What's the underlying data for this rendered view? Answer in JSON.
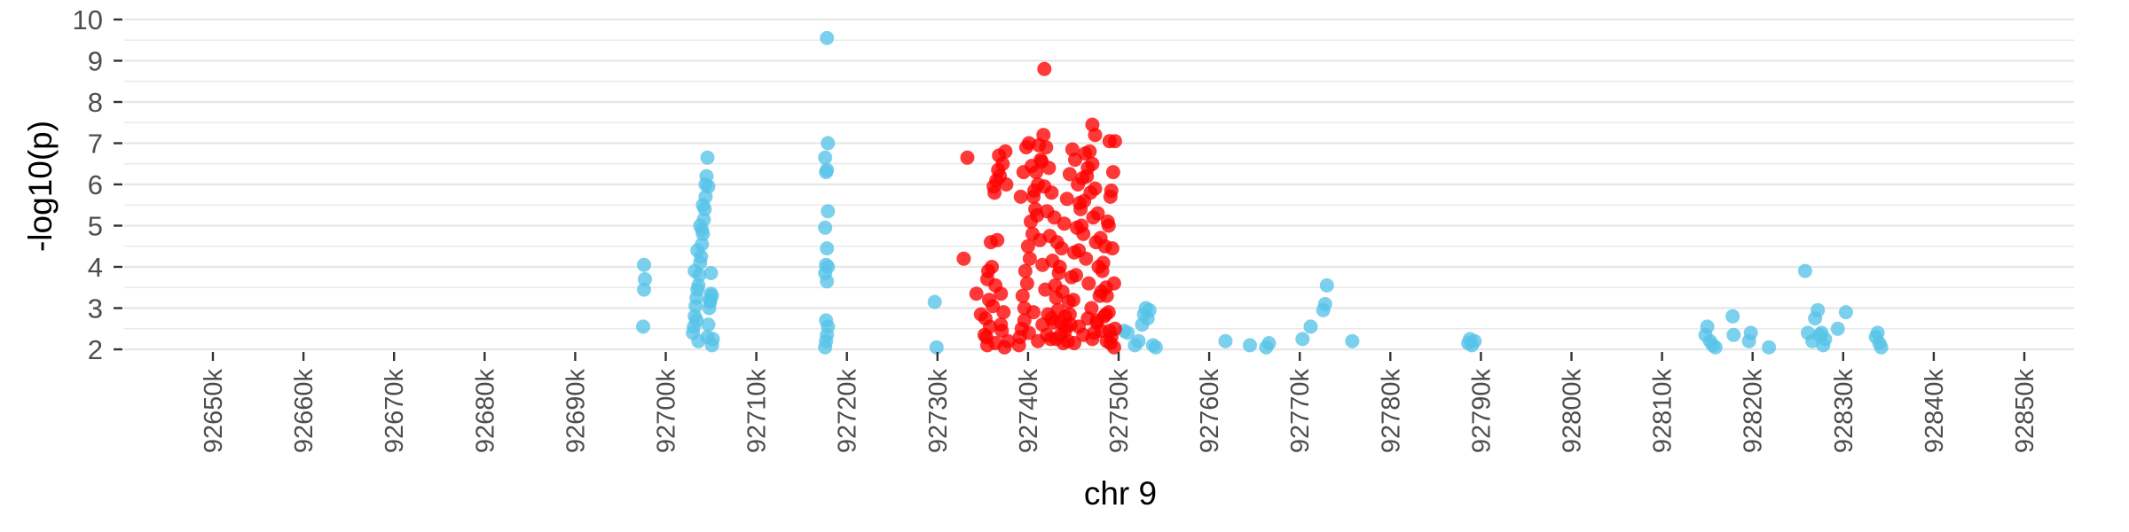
{
  "chart_data": {
    "type": "scatter",
    "title": "",
    "xlabel": "chr 9",
    "ylabel": "-log10(p)",
    "xlim": [
      92625,
      92855
    ],
    "ylim": [
      2,
      10
    ],
    "grid": true,
    "x_ticks": [
      92650,
      92660,
      92670,
      92680,
      92690,
      92700,
      92710,
      92720,
      92730,
      92740,
      92750,
      92760,
      92770,
      92780,
      92790,
      92800,
      92810,
      92820,
      92830,
      92840,
      92850
    ],
    "x_tick_labels": [
      "92650k",
      "92660k",
      "92670k",
      "92680k",
      "92690k",
      "92700k",
      "92710k",
      "92720k",
      "92730k",
      "92740k",
      "92750k",
      "92760k",
      "92770k",
      "92780k",
      "92790k",
      "92800k",
      "92810k",
      "92820k",
      "92830k",
      "92840k",
      "92850k"
    ],
    "y_ticks": [
      2,
      3,
      4,
      5,
      6,
      7,
      8,
      9,
      10
    ],
    "y_tick_labels": [
      "2",
      "3",
      "4",
      "5",
      "6",
      "7",
      "8",
      "9",
      "10"
    ],
    "colors": {
      "blue": "#56c3e8",
      "red": "#ff0000",
      "grid": "#e6e6e6",
      "tick": "#333333"
    },
    "series": [
      {
        "color": "#56c3e8",
        "x": [
          92697.5,
          92697.6,
          92697.7,
          92697.6,
          92703.0,
          92703.1,
          92703.2,
          92703.3,
          92703.4,
          92703.5,
          92703.6,
          92703.7,
          92703.8,
          92703.9,
          92704.0,
          92704.1,
          92704.2,
          92704.3,
          92704.4,
          92704.5,
          92704.6,
          92704.7,
          92704.8,
          92704.9,
          92705.0,
          92705.1,
          92705.2,
          92703.2,
          92703.5,
          92703.8,
          92704.1,
          92704.4,
          92704.6,
          92704.9,
          92705.1,
          92703.4,
          92704.0,
          92704.7,
          92705.0,
          92703.6,
          92717.6,
          92717.7,
          92717.8,
          92717.9,
          92717.7,
          92717.8,
          92717.6,
          92717.9,
          92717.7,
          92717.8,
          92717.6,
          92717.9,
          92717.7,
          92717.8,
          92717.6,
          92717.9,
          92717.8,
          92729.7,
          92729.9,
          92750.6,
          92751.0,
          92751.8,
          92752.6,
          92752.8,
          92753.0,
          92753.2,
          92753.4,
          92753.8,
          92754.1,
          92752.2,
          92761.8,
          92764.5,
          92766.3,
          92766.6,
          92770.3,
          92771.2,
          92772.6,
          92772.8,
          92773.0,
          92775.8,
          92788.6,
          92788.8,
          92789.0,
          92789.3,
          92814.8,
          92815.0,
          92815.3,
          92815.6,
          92815.9,
          92817.8,
          92817.9,
          92819.6,
          92819.8,
          92821.8,
          92825.8,
          92826.1,
          92826.6,
          92826.9,
          92827.2,
          92827.4,
          92827.6,
          92827.8,
          92828.0,
          92829.4,
          92830.3,
          92833.6,
          92833.8,
          92834.0,
          92834.2
        ],
        "y": [
          2.55,
          3.45,
          3.7,
          4.05,
          2.4,
          2.55,
          2.8,
          3.05,
          3.25,
          3.45,
          3.55,
          3.8,
          4.1,
          4.25,
          4.55,
          4.8,
          5.15,
          5.4,
          5.7,
          6.2,
          2.3,
          2.6,
          3.0,
          3.2,
          3.35,
          2.1,
          2.25,
          3.9,
          4.4,
          5.0,
          5.5,
          6.0,
          6.65,
          3.15,
          3.3,
          2.7,
          4.9,
          5.95,
          3.85,
          2.2,
          2.05,
          2.2,
          2.35,
          2.55,
          2.7,
          3.65,
          3.85,
          4.0,
          4.05,
          4.45,
          4.95,
          5.35,
          6.3,
          6.35,
          6.65,
          7.0,
          9.55,
          3.15,
          2.05,
          2.45,
          2.4,
          2.1,
          2.6,
          2.85,
          3.0,
          2.75,
          2.95,
          2.1,
          2.05,
          2.2,
          2.2,
          2.1,
          2.05,
          2.15,
          2.25,
          2.55,
          2.95,
          3.1,
          3.55,
          2.2,
          2.15,
          2.25,
          2.1,
          2.2,
          2.35,
          2.55,
          2.2,
          2.1,
          2.05,
          2.8,
          2.35,
          2.2,
          2.4,
          2.05,
          3.9,
          2.4,
          2.2,
          2.75,
          2.95,
          2.35,
          2.4,
          2.1,
          2.25,
          2.5,
          2.9,
          2.3,
          2.4,
          2.15,
          2.05
        ]
      },
      {
        "color": "#ff0000",
        "x": [
          92732.9,
          92733.3,
          92734.3,
          92734.8,
          92735.2,
          92735.5,
          92735.8,
          92736.1,
          92736.4,
          92736.6,
          92736.9,
          92737.2,
          92737.5,
          92737.8,
          92735.3,
          92735.6,
          92735.9,
          92736.2,
          92736.5,
          92736.8,
          92737.1,
          92737.4,
          92735.4,
          92735.7,
          92736.0,
          92736.3,
          92736.7,
          92737.0,
          92737.3,
          92737.6,
          92735.5,
          92736.4,
          92737.0,
          92739.0,
          92739.3,
          92739.6,
          92739.9,
          92740.2,
          92740.5,
          92740.8,
          92741.1,
          92741.4,
          92741.7,
          92742.0,
          92742.3,
          92742.6,
          92742.9,
          92743.2,
          92743.5,
          92743.8,
          92744.1,
          92744.4,
          92744.7,
          92745.0,
          92745.3,
          92745.6,
          92745.9,
          92746.2,
          92746.5,
          92746.8,
          92747.1,
          92747.4,
          92747.7,
          92748.0,
          92748.3,
          92748.6,
          92748.9,
          92749.2,
          92749.5,
          92739.2,
          92739.5,
          92739.8,
          92740.1,
          92740.4,
          92740.7,
          92741.0,
          92741.3,
          92741.6,
          92741.9,
          92742.2,
          92742.5,
          92742.8,
          92743.1,
          92743.4,
          92743.7,
          92744.0,
          92744.3,
          92744.6,
          92744.9,
          92745.2,
          92745.5,
          92745.8,
          92746.1,
          92746.4,
          92746.7,
          92747.0,
          92747.3,
          92747.6,
          92747.9,
          92748.2,
          92748.5,
          92748.8,
          92749.1,
          92749.4,
          92739.4,
          92739.7,
          92740.0,
          92740.3,
          92740.6,
          92740.9,
          92741.2,
          92741.5,
          92741.8,
          92742.1,
          92742.4,
          92742.7,
          92743.0,
          92743.3,
          92743.6,
          92743.9,
          92744.2,
          92744.5,
          92744.8,
          92745.1,
          92745.4,
          92745.7,
          92746.0,
          92746.3,
          92746.6,
          92746.9,
          92747.2,
          92747.5,
          92747.8,
          92748.1,
          92748.4,
          92748.7,
          92749.0,
          92739.1,
          92739.6,
          92740.1,
          92740.6,
          92741.1,
          92741.6,
          92742.1,
          92742.6,
          92743.1,
          92743.6,
          92744.1,
          92744.6,
          92745.1,
          92745.6,
          92746.1,
          92746.6,
          92747.1,
          92747.6,
          92748.1,
          92748.6,
          92749.1,
          92749.6,
          92741.8,
          92747.1,
          92747.4,
          92749.0,
          92749.6,
          92749.2,
          92748.9,
          92749.3,
          92749.5,
          92748.7
        ],
        "y": [
          4.2,
          6.65,
          3.35,
          2.85,
          2.35,
          2.1,
          2.55,
          3.05,
          3.55,
          4.65,
          6.2,
          6.5,
          6.8,
          2.2,
          2.75,
          3.9,
          4.6,
          5.95,
          6.1,
          6.7,
          2.45,
          2.05,
          2.3,
          3.2,
          4.0,
          5.8,
          6.35,
          2.6,
          2.9,
          6.0,
          3.7,
          2.15,
          3.35,
          2.1,
          2.5,
          3.0,
          3.6,
          4.2,
          4.8,
          5.4,
          6.0,
          6.6,
          7.2,
          6.9,
          6.4,
          5.8,
          5.2,
          4.6,
          4.0,
          3.4,
          2.8,
          2.2,
          2.6,
          3.2,
          3.8,
          4.4,
          5.0,
          5.6,
          6.2,
          6.8,
          6.5,
          5.9,
          5.3,
          4.7,
          4.1,
          3.5,
          2.9,
          2.3,
          2.05,
          5.7,
          6.3,
          6.9,
          7.0,
          6.45,
          5.85,
          5.25,
          4.65,
          4.05,
          3.45,
          2.85,
          2.25,
          2.65,
          3.25,
          3.85,
          4.45,
          5.05,
          5.65,
          6.25,
          6.85,
          6.6,
          6.0,
          5.4,
          4.8,
          4.2,
          3.6,
          3.0,
          2.4,
          2.7,
          3.3,
          3.9,
          4.5,
          5.1,
          5.7,
          6.3,
          3.3,
          3.9,
          4.5,
          5.1,
          5.7,
          6.3,
          6.95,
          6.55,
          5.95,
          5.35,
          4.75,
          4.15,
          3.55,
          2.95,
          2.35,
          2.15,
          2.55,
          3.15,
          3.75,
          4.35,
          4.95,
          5.55,
          6.15,
          6.75,
          6.4,
          5.8,
          5.2,
          4.6,
          4.0,
          3.4,
          2.8,
          2.2,
          2.45,
          2.3,
          2.7,
          2.4,
          2.9,
          2.2,
          2.6,
          2.35,
          2.75,
          2.25,
          2.65,
          2.45,
          2.85,
          2.15,
          2.55,
          2.35,
          2.75,
          2.25,
          2.65,
          2.45,
          2.85,
          2.15,
          2.5,
          8.8,
          7.45,
          7.2,
          7.05,
          7.05,
          5.85,
          5.0,
          4.45,
          3.6,
          3.3
        ]
      }
    ]
  }
}
